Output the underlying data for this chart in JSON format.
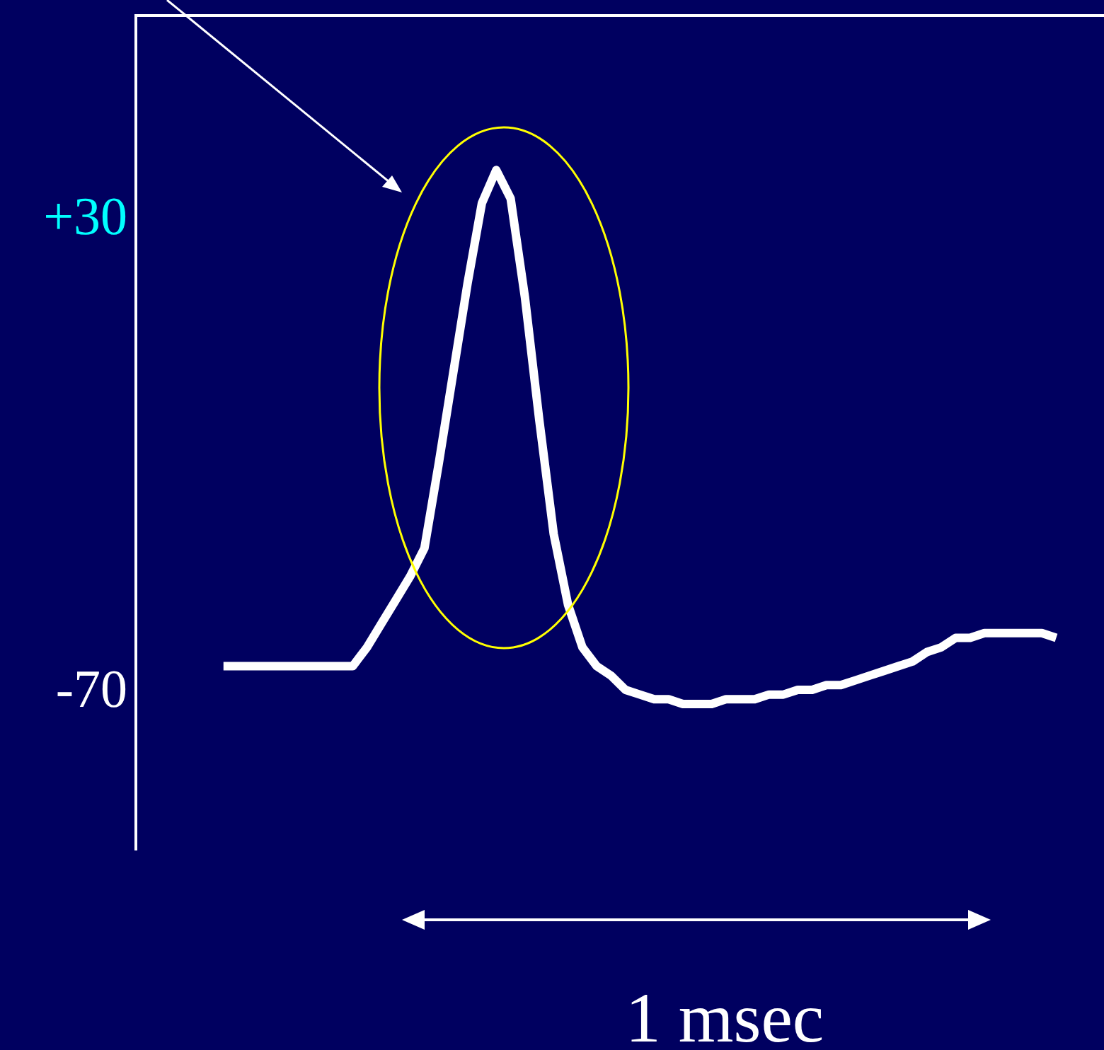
{
  "chart_data": {
    "type": "line",
    "categories": [
      null,
      null,
      null,
      null,
      null,
      null,
      null,
      null,
      null,
      null,
      null,
      null,
      null,
      null,
      null,
      null,
      null,
      null,
      null,
      null,
      null,
      null,
      null,
      null,
      null,
      null,
      null,
      null,
      null,
      null,
      null,
      null,
      null,
      null,
      null,
      null,
      null,
      null,
      null,
      null,
      null,
      null,
      null,
      null,
      null,
      null,
      null,
      null,
      null,
      null,
      null,
      null,
      null,
      null,
      null,
      null,
      null,
      null,
      null
    ],
    "series": [
      {
        "color": "#ffffff",
        "values": [
          -65,
          -65,
          -65,
          -65,
          -65,
          -65,
          -65,
          -65,
          -65,
          -65,
          -61,
          -56,
          -51,
          -46,
          -40,
          -22,
          -3,
          16,
          33,
          40,
          34,
          13,
          -13,
          -37,
          -52,
          -61,
          -65,
          -67,
          -70,
          -71,
          -72,
          -72,
          -73,
          -73,
          -73,
          -72,
          -72,
          -72,
          -71,
          -71,
          -70,
          -70,
          -69,
          -69,
          -68,
          -67,
          -66,
          -65,
          -64,
          -62,
          -61,
          -59,
          -59,
          -58,
          -58,
          -58,
          -58,
          -58,
          -59
        ]
      }
    ],
    "ylim": [
      -104,
      73
    ],
    "yticks": [
      {
        "value": 30,
        "label": "+30"
      },
      -70
    ],
    "annotations": [
      "1 msec"
    ]
  }
}
